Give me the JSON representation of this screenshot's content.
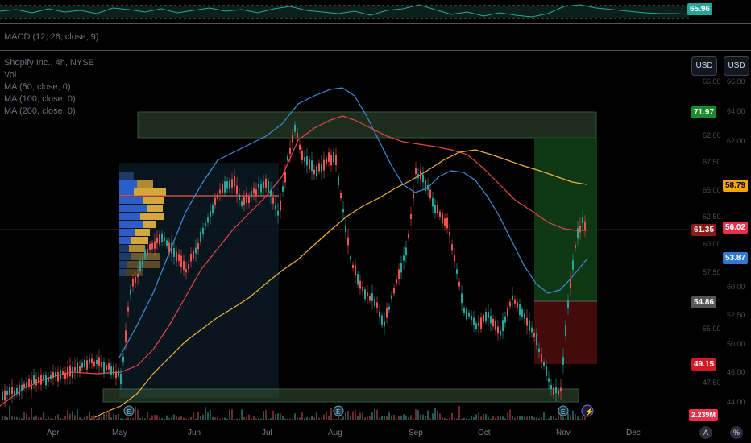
{
  "rsi": {
    "value": "65.96",
    "color": "#26a69a"
  },
  "macd": {
    "legend": "MACD (12, 26, close, 9)"
  },
  "main": {
    "title": "Shopify Inc., 4h, NYSE",
    "vol": "Vol",
    "ma50": "MA (50, close, 0)",
    "ma100": "MA (100, close, 0)",
    "ma200": "MA (200, close, 0)"
  },
  "currency": {
    "left": "USD",
    "right": "USD"
  },
  "badges": {
    "b1": "71.97",
    "b2": "58.79",
    "b3": "61.35",
    "b4": "56.02",
    "b5": "53.87",
    "b6": "54.86",
    "b7": "49.15",
    "vol": "2.239M"
  },
  "yaxis": [
    "66.00",
    "64.00",
    "62.00",
    "67.50",
    "65.00",
    "62.50",
    "60.00",
    "57.50",
    "55.00",
    "52.50",
    "50.00",
    "48.00",
    "47.50",
    "46.00",
    "44.00"
  ],
  "xaxis": [
    "Apr",
    "May",
    "Jun",
    "Jul",
    "Aug",
    "Sep",
    "Oct",
    "Nov",
    "Dec"
  ],
  "corner": {
    "a": "A",
    "b": "%"
  },
  "colors": {
    "green": "#26a69a",
    "red": "#ef5350",
    "orange": "#f7a600",
    "blue": "#2962ff"
  }
}
